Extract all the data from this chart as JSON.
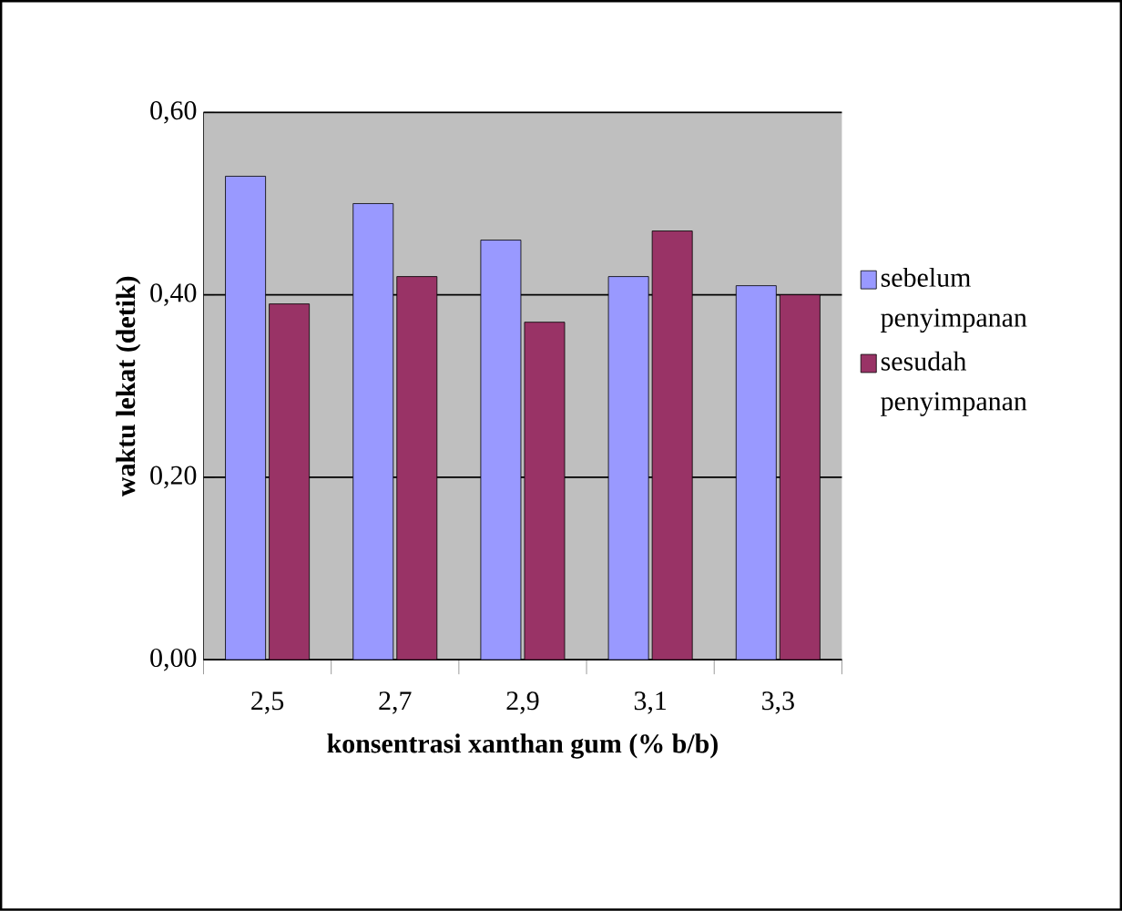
{
  "chart_data": {
    "type": "bar",
    "xlabel": "konsentrasi xanthan gum (% b/b)",
    "ylabel": "waktu lekat (detik)",
    "categories": [
      "2,5",
      "2,7",
      "2,9",
      "3,1",
      "3,3"
    ],
    "series": [
      {
        "name": "sebelum penyimpanan",
        "color": "#9999ff",
        "values": [
          0.53,
          0.5,
          0.46,
          0.42,
          0.41
        ]
      },
      {
        "name": "sesudah penyimpanan",
        "color": "#993366",
        "values": [
          0.39,
          0.42,
          0.37,
          0.47,
          0.4
        ]
      }
    ],
    "ylim": [
      0,
      0.6
    ],
    "yticks": [
      {
        "value": 0,
        "label": "0,00"
      },
      {
        "value": 0.2,
        "label": "0,20"
      },
      {
        "value": 0.4,
        "label": "0,40"
      },
      {
        "value": 0.6,
        "label": "0,60"
      }
    ],
    "grid": "y",
    "legend": "right"
  }
}
